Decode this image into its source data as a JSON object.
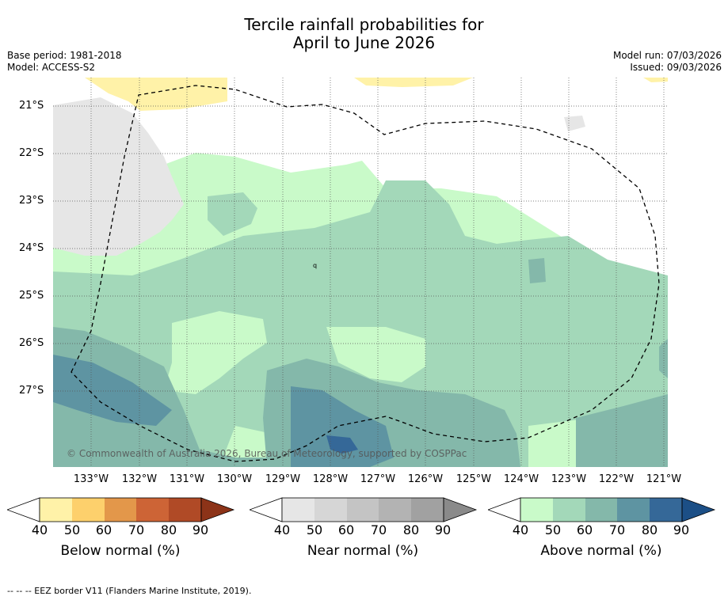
{
  "title": {
    "line1": "Tercile rainfall probabilities for",
    "line2": "April to June 2026"
  },
  "meta": {
    "base_period": "Base period: 1981-2018",
    "model": "Model: ACCESS-S2",
    "model_run": "Model run: 07/03/2026",
    "issued": "Issued: 09/03/2026"
  },
  "map": {
    "lat_labels": [
      "21°S",
      "22°S",
      "23°S",
      "24°S",
      "25°S",
      "26°S",
      "27°S"
    ],
    "lon_labels": [
      "133°W",
      "132°W",
      "131°W",
      "130°W",
      "129°W",
      "128°W",
      "127°W",
      "126°W",
      "125°W",
      "124°W",
      "123°W",
      "122°W",
      "121°W"
    ],
    "copyright": "© Commonwealth of Australia 2026, Bureau of Meteorology, supported by COSPPac",
    "island_labels": [
      "q"
    ]
  },
  "colorbars": [
    {
      "title": "Below normal (%)",
      "ticks": [
        "40",
        "50",
        "60",
        "70",
        "80",
        "90"
      ],
      "colors": [
        "#fff2a8",
        "#fdd06c",
        "#e3974a",
        "#cd6436",
        "#b04a26",
        "#8c3318"
      ]
    },
    {
      "title": "Near normal (%)",
      "ticks": [
        "40",
        "50",
        "60",
        "70",
        "80",
        "90"
      ],
      "colors": [
        "#e6e6e6",
        "#d6d6d6",
        "#c4c4c4",
        "#b3b3b3",
        "#a1a1a1",
        "#8a8a8a"
      ]
    },
    {
      "title": "Above normal (%)",
      "ticks": [
        "40",
        "50",
        "60",
        "70",
        "80",
        "90"
      ],
      "colors": [
        "#c9fac9",
        "#a3d8b9",
        "#84b8aa",
        "#5e94a2",
        "#356898",
        "#1c4f86"
      ]
    }
  ],
  "footer": "-- -- -- EEZ border V11 (Flanders Marine Institute, 2019)."
}
